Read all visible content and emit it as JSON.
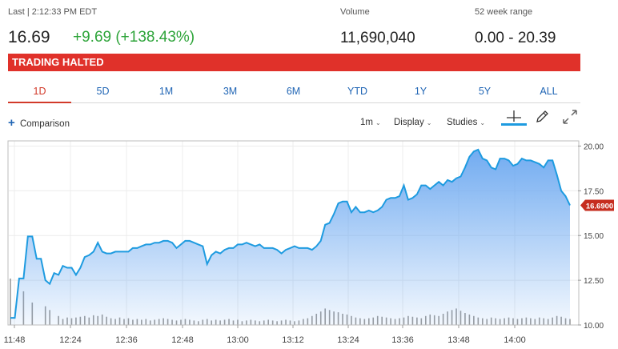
{
  "quote": {
    "last_label": "Last | 2:12:33 PM EDT",
    "price": "16.69",
    "change": "+9.69 (+138.43%)",
    "volume_label": "Volume",
    "volume": "11,690,040",
    "range_label": "52 week range",
    "range": "0.00 - 20.39"
  },
  "banner": {
    "text": "TRADING HALTED",
    "color": "#e0312a"
  },
  "tabs": [
    {
      "label": "1D",
      "active": true
    },
    {
      "label": "5D"
    },
    {
      "label": "1M"
    },
    {
      "label": "3M"
    },
    {
      "label": "6M"
    },
    {
      "label": "YTD"
    },
    {
      "label": "1Y"
    },
    {
      "label": "5Y"
    },
    {
      "label": "ALL"
    }
  ],
  "toolbar": {
    "comparison_label": "Comparison",
    "interval_label": "1m",
    "display_label": "Display",
    "studies_label": "Studies",
    "icons": [
      "crosshair-icon",
      "pencil-icon",
      "expand-icon"
    ]
  },
  "colors": {
    "accent": "#2166b5",
    "up": "#2ea43a",
    "line": "#1e9be0",
    "price_tag": "#c62d1f"
  },
  "chart_data": {
    "type": "area",
    "x_ticks": [
      "11:48",
      "12:24",
      "12:36",
      "12:48",
      "13:00",
      "13:12",
      "13:24",
      "13:36",
      "13:48",
      "14:00"
    ],
    "y_ticks": [
      "20.00",
      "17.50",
      "15.00",
      "12.50",
      "10.00"
    ],
    "ylim": [
      10,
      20.2
    ],
    "current_price_label": "16.6900",
    "current_price": 16.69,
    "price": [
      10.4,
      10.4,
      12.6,
      12.6,
      14.95,
      14.95,
      13.7,
      13.7,
      12.5,
      12.3,
      12.9,
      12.8,
      13.3,
      13.2,
      13.2,
      12.8,
      13.2,
      13.8,
      13.9,
      14.1,
      14.6,
      14.1,
      14.0,
      14.0,
      14.1,
      14.1,
      14.1,
      14.1,
      14.3,
      14.3,
      14.4,
      14.5,
      14.5,
      14.6,
      14.6,
      14.7,
      14.7,
      14.6,
      14.3,
      14.5,
      14.7,
      14.7,
      14.6,
      14.5,
      14.4,
      13.4,
      13.9,
      14.1,
      14.0,
      14.2,
      14.3,
      14.3,
      14.5,
      14.5,
      14.6,
      14.5,
      14.4,
      14.5,
      14.3,
      14.3,
      14.3,
      14.2,
      14.0,
      14.2,
      14.3,
      14.4,
      14.3,
      14.3,
      14.3,
      14.2,
      14.4,
      14.7,
      15.6,
      15.7,
      16.2,
      16.8,
      16.9,
      16.9,
      16.3,
      16.6,
      16.3,
      16.3,
      16.4,
      16.3,
      16.4,
      16.6,
      17.0,
      17.1,
      17.1,
      17.2,
      17.8,
      17.0,
      17.1,
      17.3,
      17.8,
      17.8,
      17.6,
      17.8,
      18.0,
      17.8,
      18.1,
      18.0,
      18.2,
      18.3,
      18.8,
      19.4,
      19.7,
      19.8,
      19.3,
      19.2,
      18.8,
      18.7,
      19.3,
      19.3,
      19.2,
      18.9,
      19.0,
      19.3,
      19.2,
      19.2,
      19.1,
      19.0,
      18.8,
      19.2,
      19.2,
      18.4,
      17.5,
      17.2,
      16.69
    ],
    "volume": [
      62,
      0,
      0,
      45,
      0,
      30,
      0,
      0,
      25,
      20,
      0,
      12,
      8,
      10,
      9,
      10,
      11,
      12,
      10,
      13,
      12,
      14,
      11,
      9,
      8,
      10,
      8,
      9,
      7,
      8,
      7,
      8,
      6,
      7,
      8,
      9,
      8,
      7,
      6,
      7,
      8,
      7,
      6,
      5,
      7,
      8,
      6,
      7,
      6,
      7,
      8,
      6,
      7,
      5,
      6,
      7,
      6,
      5,
      6,
      7,
      6,
      5,
      6,
      7,
      6,
      5,
      6,
      8,
      9,
      12,
      15,
      18,
      22,
      20,
      18,
      17,
      15,
      14,
      12,
      10,
      9,
      8,
      9,
      10,
      12,
      11,
      10,
      9,
      8,
      9,
      10,
      12,
      11,
      10,
      9,
      12,
      14,
      13,
      12,
      15,
      18,
      20,
      22,
      19,
      16,
      14,
      12,
      10,
      9,
      8,
      10,
      9,
      8,
      9,
      10,
      9,
      8,
      9,
      10,
      9,
      8,
      10,
      9,
      8,
      10,
      12,
      11,
      9,
      8
    ]
  }
}
